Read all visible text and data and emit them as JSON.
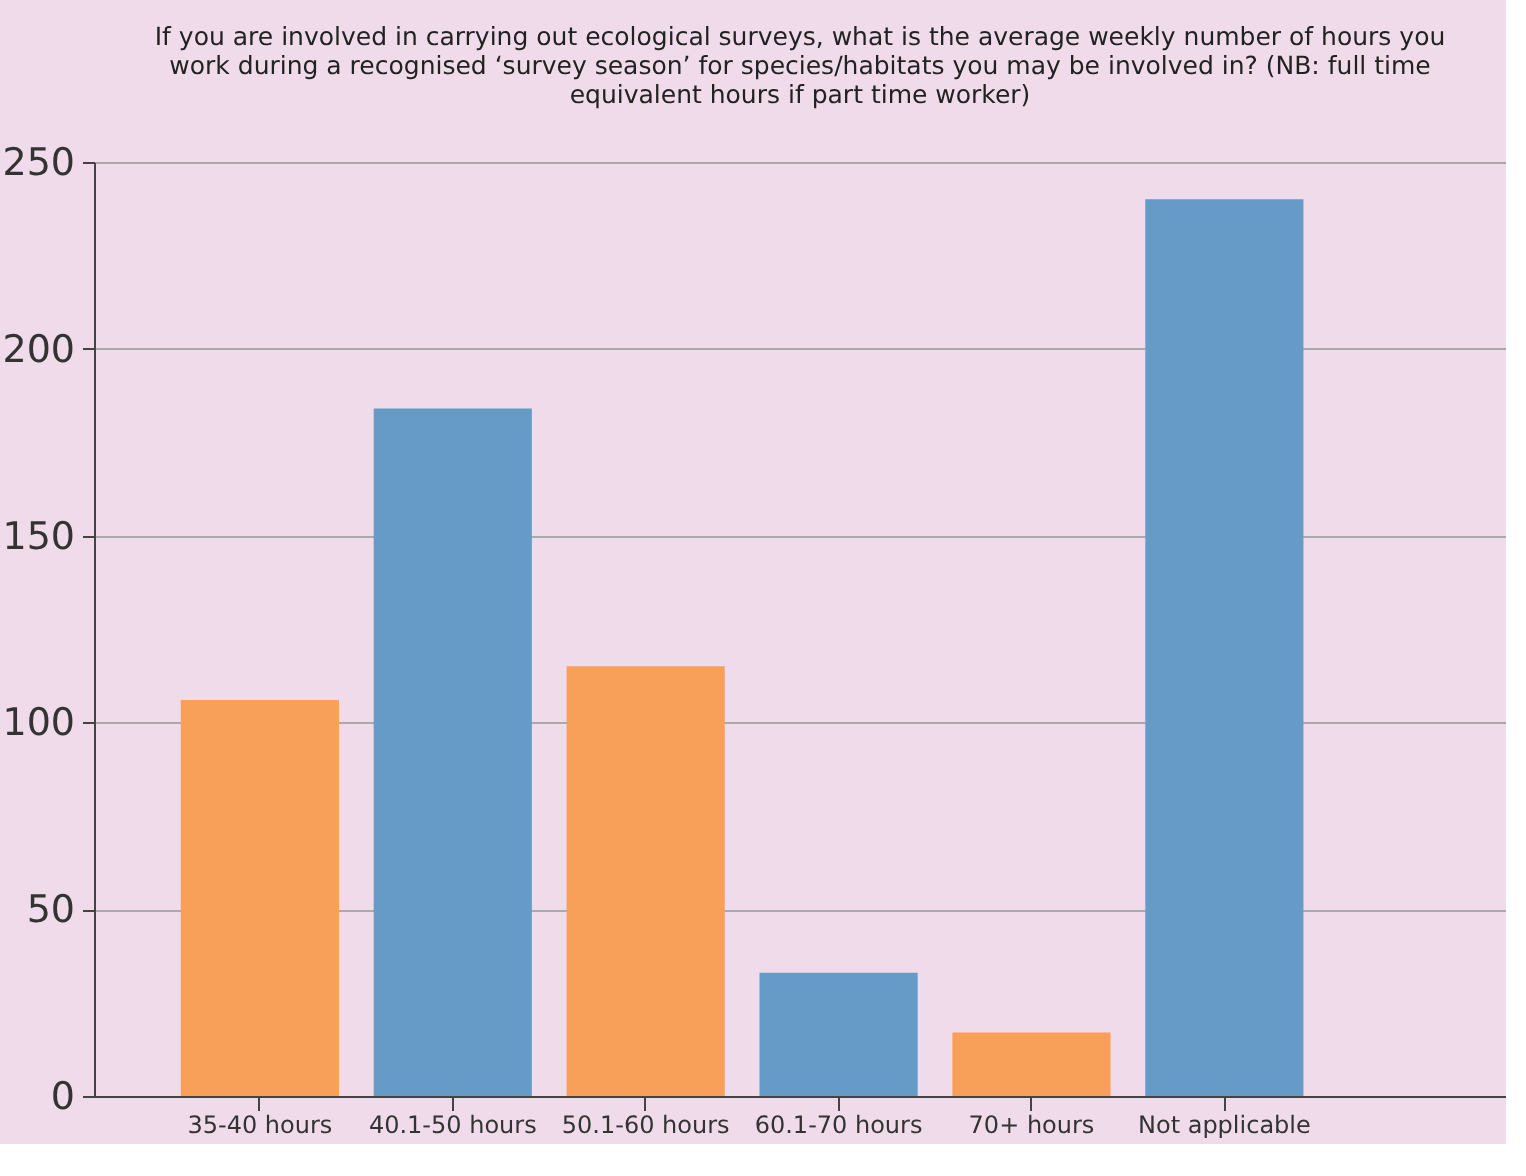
{
  "chart_data": {
    "type": "bar",
    "title": [
      "If you are involved in carrying out ecological surveys, what is the average weekly number of hours you",
      "work during a recognised ‘survey season’ for species/habitats you may be involved in? (NB: full time",
      "equivalent hours if part time worker)"
    ],
    "categories": [
      "35-40 hours",
      "40.1-50 hours",
      "50.1-60 hours",
      "60.1-70 hours",
      "70+ hours",
      "Not applicable"
    ],
    "values": [
      106,
      184,
      115,
      33,
      17,
      240
    ],
    "colors": [
      "#f8a05a",
      "#669bc8",
      "#f8a05a",
      "#669bc8",
      "#f8a05a",
      "#669bc8"
    ],
    "ylim": [
      0,
      250
    ],
    "yticks": [
      0,
      50,
      100,
      150,
      200,
      250
    ],
    "grid": "y",
    "legend": false
  }
}
